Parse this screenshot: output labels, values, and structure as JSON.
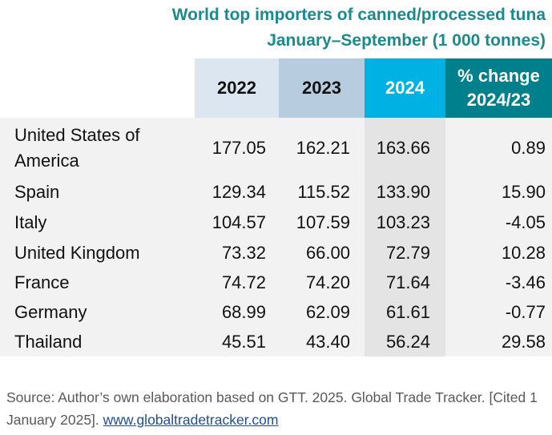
{
  "title_line1": "World top importers of canned/processed tuna",
  "title_line2": "January–September (1 000 tonnes)",
  "chart_data": {
    "type": "table",
    "columns": [
      "2022",
      "2023",
      "2024",
      "% change 2024/23"
    ],
    "col_header_pc_line1": "% change",
    "col_header_pc_line2": "2024/23",
    "rows": [
      {
        "country_line1": "United States of",
        "country_line2": "America",
        "values": [
          "177.05",
          "162.21",
          "163.66",
          "0.89"
        ]
      },
      {
        "country_line1": "Spain",
        "country_line2": "",
        "values": [
          "129.34",
          "115.52",
          "133.90",
          "15.90"
        ]
      },
      {
        "country_line1": "Italy",
        "country_line2": "",
        "values": [
          "104.57",
          "107.59",
          "103.23",
          "-4.05"
        ]
      },
      {
        "country_line1": "United Kingdom",
        "country_line2": "",
        "values": [
          "73.32",
          "66.00",
          "72.79",
          "10.28"
        ]
      },
      {
        "country_line1": "France",
        "country_line2": "",
        "values": [
          "74.72",
          "74.20",
          "71.64",
          "-3.46"
        ]
      },
      {
        "country_line1": "Germany",
        "country_line2": "",
        "values": [
          "68.99",
          "62.09",
          "61.61",
          "-0.77"
        ]
      },
      {
        "country_line1": "Thailand",
        "country_line2": "",
        "values": [
          "45.51",
          "43.40",
          "56.24",
          "29.58"
        ]
      }
    ]
  },
  "colors": {
    "title": "#1a8a8e",
    "header_2022": "#dce6f0",
    "header_2023": "#b8cce0",
    "header_2024": "#00b2e3",
    "header_change": "#007f8c",
    "link": "#1f4e9c"
  },
  "source_text": "Source: Author’s own elaboration based on GTT. 2025. Global Trade Tracker. [Cited 1 January 2025]. ",
  "source_link": "www.globaltradetracker.com"
}
